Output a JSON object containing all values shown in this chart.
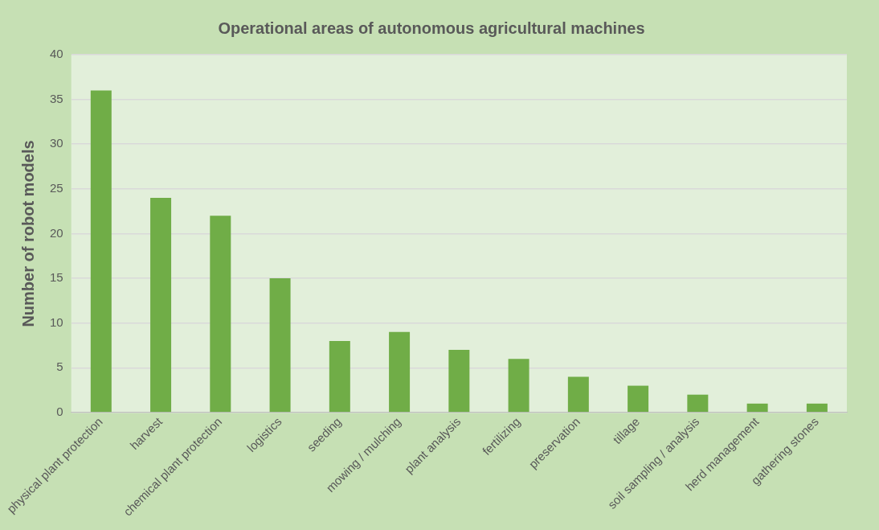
{
  "chart_data": {
    "type": "bar",
    "title": "Operational areas of autonomous agricultural machines",
    "ylabel": "Number of robot models",
    "categories": [
      "physical plant protection",
      "harvest",
      "chemical plant protection",
      "logistics",
      "seeding",
      "mowing / mulching",
      "plant analysis",
      "fertilizing",
      "preservation",
      "tillage",
      "soil sampling / analysis",
      "herd management",
      "gathering stones"
    ],
    "values": [
      36,
      24,
      22,
      15,
      8,
      9,
      7,
      6,
      4,
      3,
      2,
      1,
      1
    ],
    "color": "#70ad47",
    "ylim": [
      0,
      40
    ],
    "yticks": [
      0,
      5,
      10,
      15,
      20,
      25,
      30,
      35,
      40
    ],
    "grid": "y",
    "legend": false
  }
}
